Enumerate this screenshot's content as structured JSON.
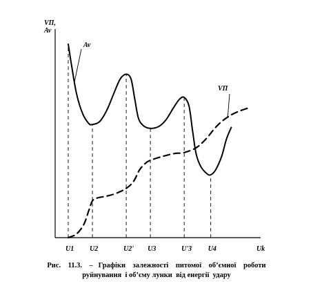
{
  "chart_data": {
    "type": "line",
    "title": "",
    "ylabel_lines": [
      "VΠ,",
      "Av"
    ],
    "xlabel": "Uk",
    "ylim": [
      0,
      100
    ],
    "x_ticks": [
      "U1",
      "U2",
      "U2'",
      "U3",
      "U'3",
      "U4"
    ],
    "x_tick_positions": [
      0,
      1,
      2.4,
      3.4,
      4.8,
      5.9
    ],
    "xlim": [
      -0.2,
      7.8
    ],
    "grid": false,
    "legend": "none",
    "series": [
      {
        "name": "Av",
        "style": "solid",
        "points": [
          [
            0,
            100
          ],
          [
            0.15,
            88
          ],
          [
            0.35,
            74
          ],
          [
            0.6,
            64
          ],
          [
            0.85,
            59
          ],
          [
            1.0,
            58.5
          ],
          [
            1.3,
            60
          ],
          [
            1.6,
            66
          ],
          [
            1.9,
            75
          ],
          [
            2.15,
            82
          ],
          [
            2.4,
            84.5
          ],
          [
            2.6,
            82
          ],
          [
            2.75,
            72
          ],
          [
            2.9,
            62
          ],
          [
            3.1,
            58
          ],
          [
            3.4,
            56.5
          ],
          [
            3.75,
            57.5
          ],
          [
            4.05,
            61
          ],
          [
            4.35,
            67
          ],
          [
            4.6,
            71.5
          ],
          [
            4.8,
            72.5
          ],
          [
            5.0,
            68
          ],
          [
            5.15,
            55
          ],
          [
            5.3,
            43
          ],
          [
            5.5,
            36.5
          ],
          [
            5.75,
            33
          ],
          [
            5.9,
            32.5
          ],
          [
            6.1,
            35
          ],
          [
            6.35,
            42
          ],
          [
            6.55,
            51
          ],
          [
            6.75,
            57
          ]
        ]
      },
      {
        "name": "VΠ",
        "style": "dashed",
        "points": [
          [
            0,
            0
          ],
          [
            0.35,
            2
          ],
          [
            0.65,
            7
          ],
          [
            0.85,
            14
          ],
          [
            1.0,
            19
          ],
          [
            1.2,
            20.5
          ],
          [
            1.6,
            21.5
          ],
          [
            2.0,
            23
          ],
          [
            2.4,
            25.5
          ],
          [
            2.7,
            29
          ],
          [
            2.95,
            35
          ],
          [
            3.2,
            38.5
          ],
          [
            3.4,
            40
          ],
          [
            3.9,
            42
          ],
          [
            4.4,
            43.5
          ],
          [
            4.8,
            44
          ],
          [
            5.3,
            46.5
          ],
          [
            5.7,
            51
          ],
          [
            6.1,
            57
          ],
          [
            6.4,
            60.5
          ],
          [
            6.75,
            63.5
          ],
          [
            7.1,
            65.5
          ],
          [
            7.45,
            67
          ]
        ]
      }
    ],
    "annotations": [
      {
        "text": "Av",
        "series": "Av"
      },
      {
        "text": "VΠ",
        "series": "VΠ"
      }
    ]
  },
  "caption": {
    "line1": "Рис.    11.3.    –   Графіки    залежності    питомої    об’ємної    роботи",
    "line2": "руйнування  і об’єму лунки  від енергії  удару"
  }
}
